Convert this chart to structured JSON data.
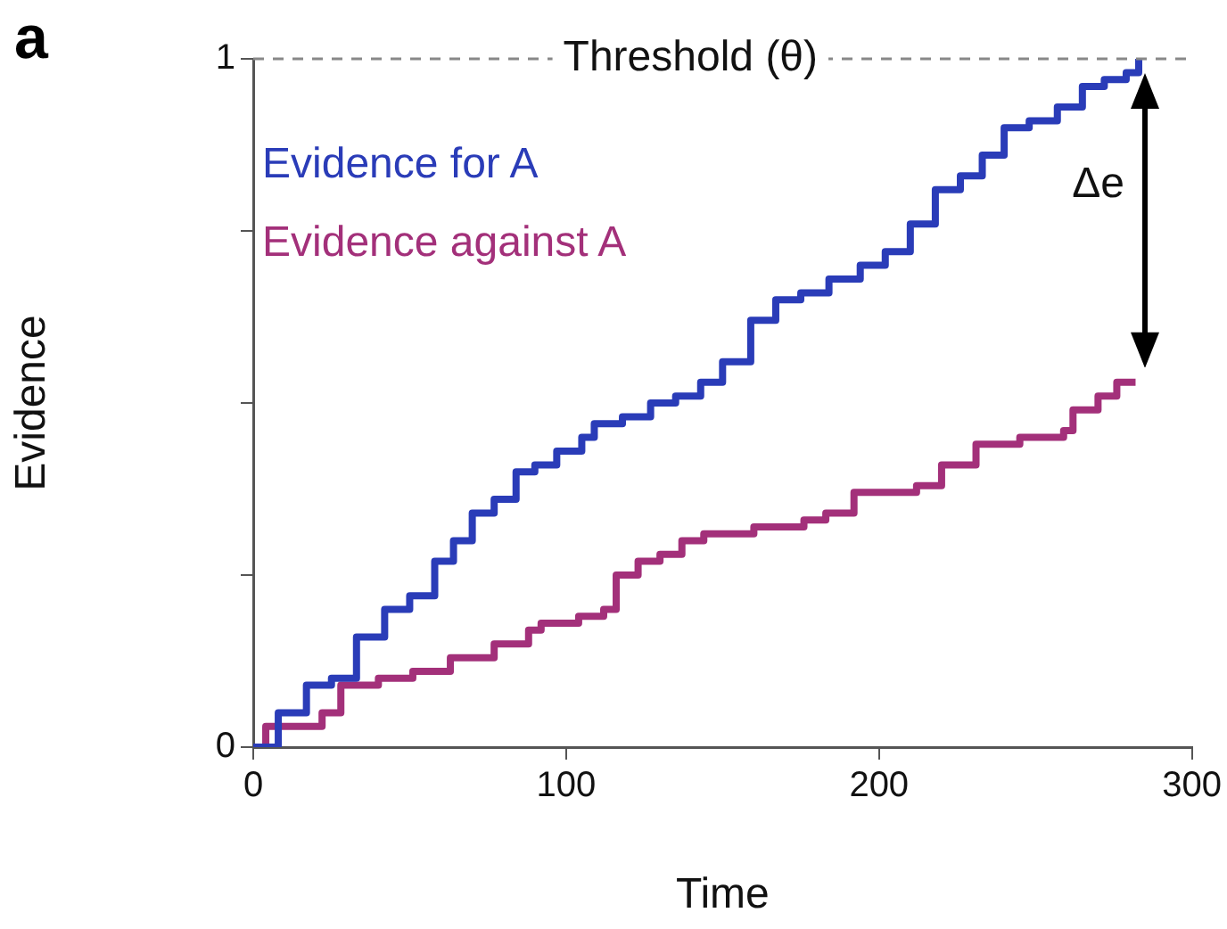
{
  "chart_data": {
    "type": "step",
    "title": "a",
    "xlabel": "Time",
    "ylabel": "Evidence",
    "xlim": [
      0,
      300
    ],
    "xticks": [
      0,
      100,
      200,
      300
    ],
    "ylim": [
      0,
      1
    ],
    "yticks": [
      0,
      {
        "value": 0.25,
        "label": null
      },
      {
        "value": 0.5,
        "label": null
      },
      {
        "value": 0.75,
        "label": null
      },
      1
    ],
    "grid": false,
    "legend": "top left",
    "marker": "none",
    "line_style": "solid",
    "series": [
      {
        "name": "Evidence for A",
        "color": "#2a3cb8",
        "x": [
          0,
          8,
          17,
          25,
          33,
          42,
          50,
          58,
          64,
          70,
          77,
          84,
          90,
          97,
          105,
          109,
          118,
          127,
          135,
          143,
          150,
          159,
          167,
          175,
          184,
          194,
          202,
          210,
          218,
          226,
          233,
          240,
          248,
          257,
          265,
          272,
          279,
          283
        ],
        "values": [
          0,
          0.05,
          0.09,
          0.1,
          0.16,
          0.2,
          0.22,
          0.27,
          0.3,
          0.34,
          0.36,
          0.4,
          0.41,
          0.43,
          0.45,
          0.47,
          0.48,
          0.5,
          0.51,
          0.53,
          0.56,
          0.62,
          0.65,
          0.66,
          0.68,
          0.7,
          0.72,
          0.76,
          0.81,
          0.83,
          0.86,
          0.9,
          0.91,
          0.93,
          0.96,
          0.97,
          0.98,
          1.0
        ]
      },
      {
        "name": "Evidence against A",
        "color": "#a3307a",
        "x": [
          0,
          4,
          22,
          28,
          40,
          51,
          63,
          77,
          88,
          92,
          104,
          112,
          116,
          123,
          130,
          137,
          144,
          160,
          176,
          183,
          192,
          202,
          212,
          220,
          231,
          245,
          259,
          262,
          270,
          276,
          282
        ],
        "values": [
          0,
          0.03,
          0.05,
          0.09,
          0.1,
          0.11,
          0.13,
          0.15,
          0.17,
          0.18,
          0.19,
          0.2,
          0.25,
          0.27,
          0.28,
          0.3,
          0.31,
          0.32,
          0.33,
          0.34,
          0.37,
          0.37,
          0.38,
          0.41,
          0.44,
          0.45,
          0.46,
          0.49,
          0.51,
          0.53,
          0.53
        ]
      }
    ],
    "ref_lines": [
      {
        "axis": "y",
        "value": 1,
        "label": "Threshold (θ)",
        "color": "#888888",
        "line_style": "dashed"
      }
    ],
    "annotations": [
      "Δe"
    ]
  }
}
